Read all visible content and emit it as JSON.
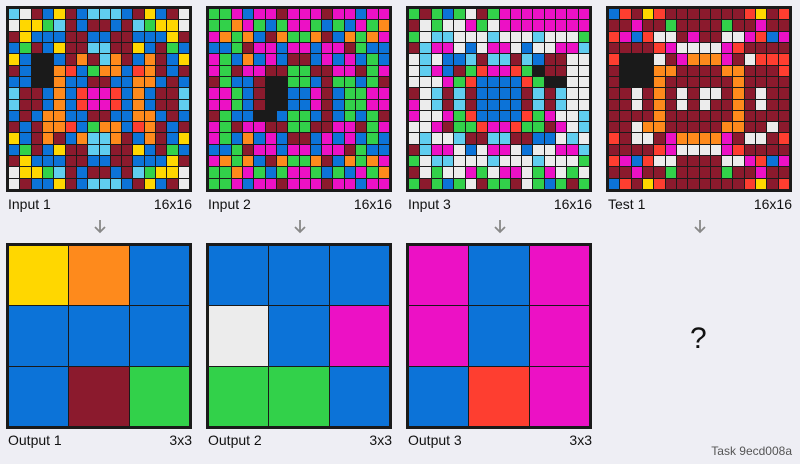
{
  "palette": {
    "0": "#ececec",
    "1": "#0c73d8",
    "2": "#fe3e30",
    "3": "#32d14a",
    "4": "#ffd700",
    "5": "#1a1a1a",
    "6": "#ec11c5",
    "7": "#fe8a1c",
    "8": "#60cdef",
    "9": "#8b1a2d"
  },
  "pairs": [
    {
      "input_label": "Input 1",
      "input_dims": "16x16",
      "input_grid": [
        "8091491888194190",
        "0443891991983440",
        "9411199119911149",
        "1391499889941931",
        "4155197987917914",
        "9155721377127919",
        "1155711991177191",
        "8991712662171998",
        "8991712662171998",
        "1917711991177191",
        "9197721377127919",
        "4197917887917914",
        "1391499889941931",
        "9411199119911149",
        "0443891991983440",
        "0911491888194190"
      ],
      "output_label": "Output 1",
      "output_dims": "3x3",
      "output_grid": [
        "471",
        "111",
        "193"
      ]
    },
    {
      "input_label": "Input 2",
      "input_dims": "16x16",
      "input_grid": [
        "3361669666966166",
        "3376313663131637",
        "6737197337917376",
        "1139661661669311",
        "6317161991616131",
        "6396699339966936",
        "9311955331933139",
        "6631955116913366",
        "6631955116913366",
        "9311551331913139",
        "6396699339966936",
        "6317161991616131",
        "1139661661669311",
        "6737197337917376",
        "3376313663131637",
        "3361669666966166"
      ],
      "output_label": "Output 2",
      "output_dims": "3x3",
      "output_grid": [
        "111",
        "016",
        "331"
      ]
    },
    {
      "input_label": "Input 3",
      "input_dims": "16x16",
      "input_grid": [
        "3931309366666666",
        "9030063066666666",
        "3088000800080003",
        "9866010660100668",
        "0801189889819900",
        "0861932662359900",
        "0006321111235500",
        "9089891111989800",
        "6089891111989800",
        "6006321111236008",
        "0069332662339608",
        "0800899889911080",
        "9866010660100668",
        "3088000800080003",
        "9030063066036030",
        "3931309339031393"
      ],
      "output_label": "Output 3",
      "output_dims": "3x3",
      "output_grid": [
        "616",
        "616",
        "126"
      ]
    }
  ],
  "test": {
    "label": "Test 1",
    "dims": "16x16",
    "grid": [
      "1294299999992492",
      "9969939999399699",
      "2612009699006216",
      "9999260000629999",
      "2555096777690222",
      "9555779999779992",
      "9555799999979999",
      "9909790900979099",
      "9909790909979099",
      "9999799999979999",
      "9907799999779909",
      "2900967777690092",
      "9999260000629999",
      "2612009999006216",
      "9969939999399699",
      "1294299999992492"
    ],
    "placeholder": "?"
  },
  "task_id": "Task 9ecd008a"
}
